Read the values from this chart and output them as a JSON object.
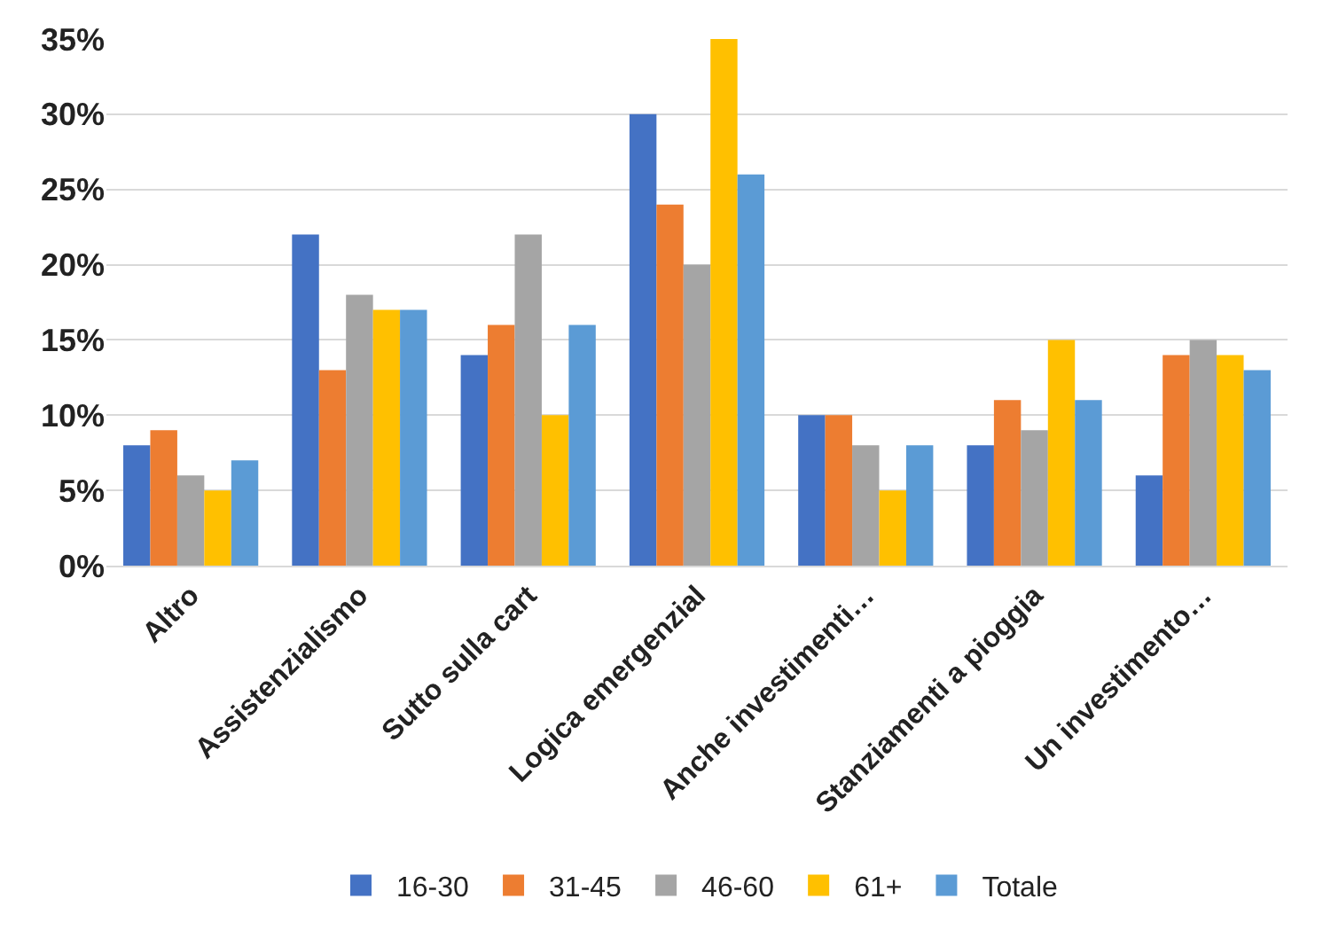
{
  "chart_data": {
    "type": "bar",
    "categories": [
      "Altro",
      "Assistenzialismo",
      "Sutto sulla cart",
      "Logica emergenzial",
      "Anche investimenti…",
      "Stanziamenti a pioggia",
      "Un investimento…"
    ],
    "series": [
      {
        "name": "16-30",
        "color": "#4472c4",
        "values": [
          8,
          22,
          14,
          30,
          10,
          8,
          6
        ]
      },
      {
        "name": "31-45",
        "color": "#ed7d31",
        "values": [
          9,
          13,
          16,
          24,
          10,
          11,
          14
        ]
      },
      {
        "name": "46-60",
        "color": "#a5a5a5",
        "values": [
          6,
          18,
          22,
          20,
          8,
          9,
          15
        ]
      },
      {
        "name": "61+",
        "color": "#ffc000",
        "values": [
          5,
          17,
          10,
          35,
          5,
          15,
          14
        ]
      },
      {
        "name": "Totale",
        "color": "#5b9bd5",
        "values": [
          7,
          17,
          16,
          26,
          8,
          11,
          13
        ]
      }
    ],
    "ylim": [
      0,
      35
    ],
    "yticks": [
      {
        "value": 0,
        "label": "0%"
      },
      {
        "value": 5,
        "label": "5%"
      },
      {
        "value": 10,
        "label": "10%"
      },
      {
        "value": 15,
        "label": "15%"
      },
      {
        "value": 20,
        "label": "20%"
      },
      {
        "value": 25,
        "label": "25%"
      },
      {
        "value": 30,
        "label": "30%"
      },
      {
        "value": 35,
        "label": "35%"
      }
    ],
    "grid": "y",
    "legend": "bottom"
  }
}
